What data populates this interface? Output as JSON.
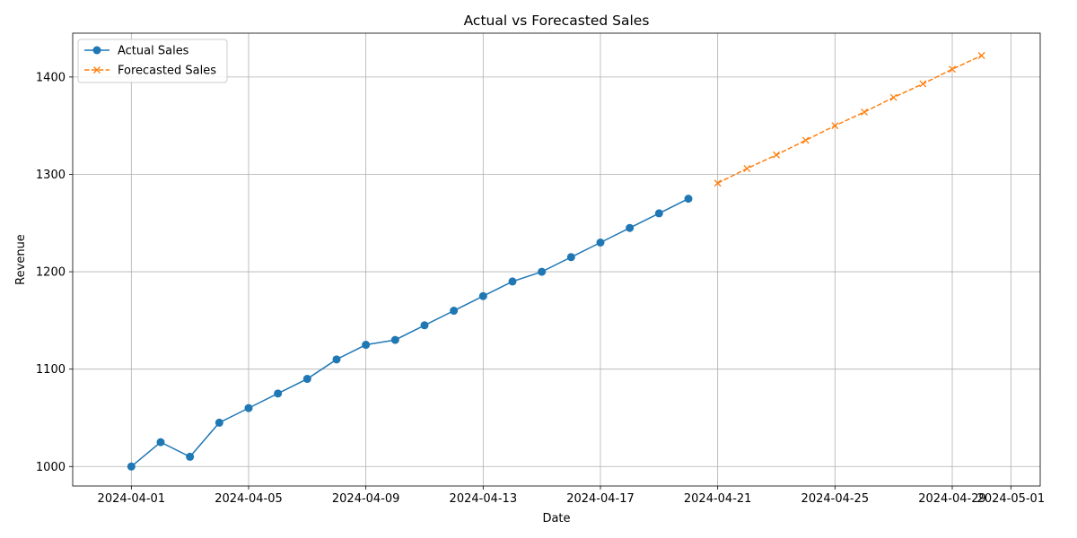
{
  "chart_data": {
    "type": "line",
    "title": "Actual vs Forecasted Sales",
    "xlabel": "Date",
    "ylabel": "Revenue",
    "x_axis_type": "date",
    "xlim": [
      "2024-03-30",
      "2024-05-02"
    ],
    "ylim": [
      980,
      1445
    ],
    "grid": true,
    "legend_position": "top-left",
    "x_ticks": [
      "2024-04-01",
      "2024-04-05",
      "2024-04-09",
      "2024-04-13",
      "2024-04-17",
      "2024-04-21",
      "2024-04-25",
      "2024-04-29",
      "2024-05-01"
    ],
    "y_ticks": [
      1000,
      1100,
      1200,
      1300,
      1400
    ],
    "series": [
      {
        "name": "Actual Sales",
        "color": "#1f77b4",
        "line_style": "solid",
        "marker": "circle",
        "points": [
          {
            "x": "2024-04-01",
            "y": 1000
          },
          {
            "x": "2024-04-02",
            "y": 1025
          },
          {
            "x": "2024-04-03",
            "y": 1010
          },
          {
            "x": "2024-04-04",
            "y": 1045
          },
          {
            "x": "2024-04-05",
            "y": 1060
          },
          {
            "x": "2024-04-06",
            "y": 1075
          },
          {
            "x": "2024-04-07",
            "y": 1090
          },
          {
            "x": "2024-04-08",
            "y": 1110
          },
          {
            "x": "2024-04-09",
            "y": 1125
          },
          {
            "x": "2024-04-10",
            "y": 1130
          },
          {
            "x": "2024-04-11",
            "y": 1145
          },
          {
            "x": "2024-04-12",
            "y": 1160
          },
          {
            "x": "2024-04-13",
            "y": 1175
          },
          {
            "x": "2024-04-14",
            "y": 1190
          },
          {
            "x": "2024-04-15",
            "y": 1200
          },
          {
            "x": "2024-04-16",
            "y": 1215
          },
          {
            "x": "2024-04-17",
            "y": 1230
          },
          {
            "x": "2024-04-18",
            "y": 1245
          },
          {
            "x": "2024-04-19",
            "y": 1260
          },
          {
            "x": "2024-04-20",
            "y": 1275
          }
        ]
      },
      {
        "name": "Forecasted Sales",
        "color": "#ff7f0e",
        "line_style": "dashed",
        "marker": "x",
        "points": [
          {
            "x": "2024-04-21",
            "y": 1291
          },
          {
            "x": "2024-04-22",
            "y": 1306
          },
          {
            "x": "2024-04-23",
            "y": 1320
          },
          {
            "x": "2024-04-24",
            "y": 1335
          },
          {
            "x": "2024-04-25",
            "y": 1350
          },
          {
            "x": "2024-04-26",
            "y": 1364
          },
          {
            "x": "2024-04-27",
            "y": 1379
          },
          {
            "x": "2024-04-28",
            "y": 1393
          },
          {
            "x": "2024-04-29",
            "y": 1408
          },
          {
            "x": "2024-04-30",
            "y": 1422
          }
        ]
      }
    ]
  }
}
